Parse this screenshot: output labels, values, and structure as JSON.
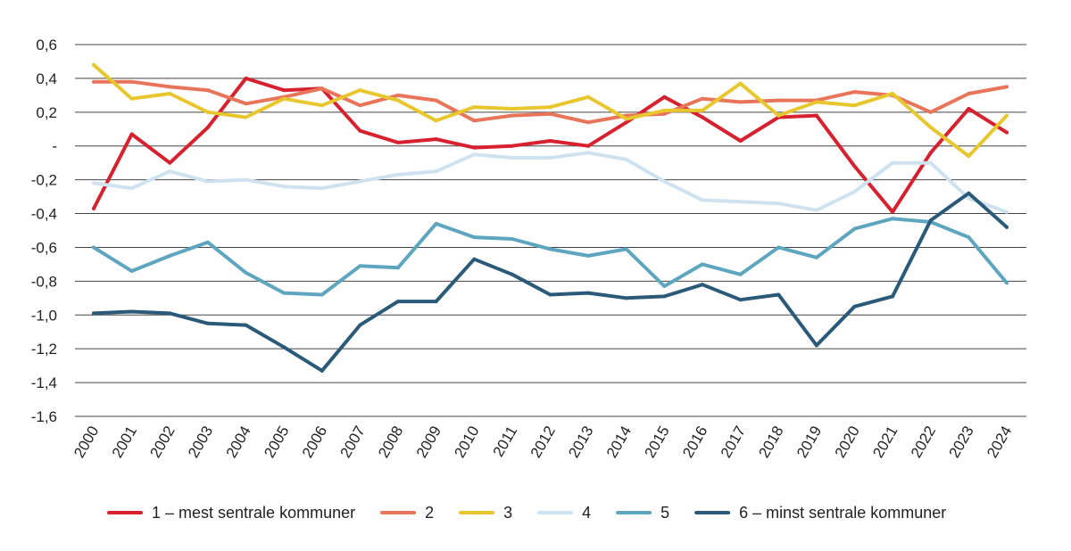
{
  "chart_data": {
    "type": "line",
    "title": "",
    "xlabel": "",
    "ylabel": "",
    "x": [
      "2000",
      "2001",
      "2002",
      "2003",
      "2004",
      "2005",
      "2006",
      "2007",
      "2008",
      "2009",
      "2010",
      "2011",
      "2012",
      "2013",
      "2014",
      "2015",
      "2016",
      "2017",
      "2018",
      "2019",
      "2020",
      "2021",
      "2022",
      "2023",
      "2024"
    ],
    "ylim": [
      -1.6,
      0.6
    ],
    "yticks": [
      {
        "value": 0.6,
        "label": "0,6"
      },
      {
        "value": 0.4,
        "label": "0,4"
      },
      {
        "value": 0.2,
        "label": "0,2"
      },
      {
        "value": 0.0,
        "label": "-"
      },
      {
        "value": -0.2,
        "label": "-0,2"
      },
      {
        "value": -0.4,
        "label": "-0,4"
      },
      {
        "value": -0.6,
        "label": "-0,6"
      },
      {
        "value": -0.8,
        "label": "-0,8"
      },
      {
        "value": -1.0,
        "label": "-1,0"
      },
      {
        "value": -1.2,
        "label": "-1,2"
      },
      {
        "value": -1.4,
        "label": "-1,4"
      },
      {
        "value": -1.6,
        "label": "-1,6"
      }
    ],
    "grid": true,
    "legend_position": "bottom",
    "series": [
      {
        "name": "1 – mest sentrale kommuner",
        "color": "#d7212f",
        "values": [
          -0.37,
          0.07,
          -0.1,
          0.11,
          0.4,
          0.33,
          0.34,
          0.09,
          0.02,
          0.04,
          -0.01,
          0.0,
          0.03,
          0.0,
          0.14,
          0.29,
          0.17,
          0.03,
          0.17,
          0.18,
          -0.12,
          -0.39,
          -0.04,
          0.22,
          0.08
        ]
      },
      {
        "name": "2",
        "color": "#e8745a",
        "values": [
          0.38,
          0.38,
          0.35,
          0.33,
          0.25,
          0.29,
          0.34,
          0.24,
          0.3,
          0.27,
          0.15,
          0.18,
          0.19,
          0.14,
          0.18,
          0.19,
          0.28,
          0.26,
          0.27,
          0.27,
          0.32,
          0.3,
          0.2,
          0.31,
          0.35
        ]
      },
      {
        "name": "3",
        "color": "#e8c62e",
        "values": [
          0.48,
          0.28,
          0.31,
          0.2,
          0.17,
          0.28,
          0.24,
          0.33,
          0.27,
          0.15,
          0.23,
          0.22,
          0.23,
          0.29,
          0.16,
          0.21,
          0.21,
          0.37,
          0.18,
          0.26,
          0.24,
          0.31,
          0.11,
          -0.06,
          0.18
        ]
      },
      {
        "name": "4",
        "color": "#cfe2f0",
        "values": [
          -0.22,
          -0.25,
          -0.15,
          -0.21,
          -0.2,
          -0.24,
          -0.25,
          -0.21,
          -0.17,
          -0.15,
          -0.05,
          -0.07,
          -0.07,
          -0.04,
          -0.08,
          -0.21,
          -0.32,
          -0.33,
          -0.34,
          -0.38,
          -0.27,
          -0.1,
          -0.1,
          -0.31,
          -0.39
        ]
      },
      {
        "name": "5",
        "color": "#5ea6bf",
        "values": [
          -0.6,
          -0.74,
          -0.65,
          -0.57,
          -0.75,
          -0.87,
          -0.88,
          -0.71,
          -0.72,
          -0.46,
          -0.54,
          -0.55,
          -0.61,
          -0.65,
          -0.61,
          -0.83,
          -0.7,
          -0.76,
          -0.6,
          -0.66,
          -0.49,
          -0.43,
          -0.45,
          -0.54,
          -0.81
        ]
      },
      {
        "name": "6 – minst sentrale kommuner",
        "color": "#2b5a79",
        "values": [
          -0.99,
          -0.98,
          -0.99,
          -1.05,
          -1.06,
          -1.19,
          -1.33,
          -1.06,
          -0.92,
          -0.92,
          -0.67,
          -0.76,
          -0.88,
          -0.87,
          -0.9,
          -0.89,
          -0.82,
          -0.91,
          -0.88,
          -1.18,
          -0.95,
          -0.89,
          -0.44,
          -0.28,
          -0.48
        ]
      }
    ]
  }
}
